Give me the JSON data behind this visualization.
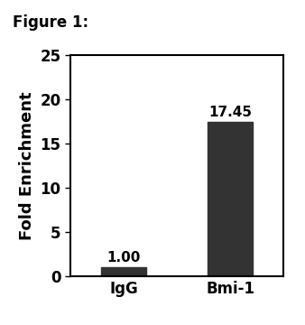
{
  "categories": [
    "IgG",
    "Bmi-1"
  ],
  "values": [
    1.0,
    17.45
  ],
  "bar_color": "#333333",
  "bar_width": 0.42,
  "ylabel": "Fold Enrichment",
  "ylim": [
    0,
    25
  ],
  "yticks": [
    0,
    5,
    10,
    15,
    20,
    25
  ],
  "figure_label": "Figure 1:",
  "value_labels": [
    "1.00",
    "17.45"
  ],
  "value_label_fontsize": 11,
  "axis_label_fontsize": 13,
  "tick_label_fontsize": 12,
  "figure_label_fontsize": 12,
  "background_color": "#ffffff",
  "bar_edge_color": "#333333"
}
